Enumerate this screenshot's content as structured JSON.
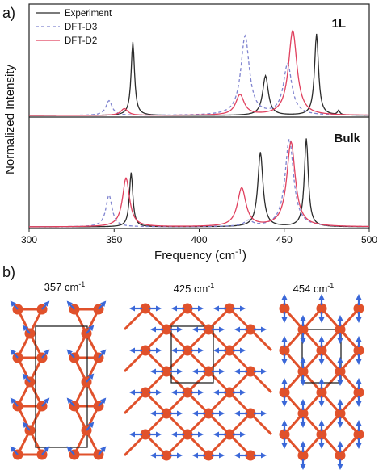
{
  "chart_data": [
    {
      "panel_label": "a)",
      "type": "line",
      "xlabel": "Frequency (cm",
      "xlabel_sup": "-1",
      "xlabel_close": ")",
      "ylabel": "Normalized Intensity",
      "xlim": [
        300,
        500
      ],
      "x_ticks": [
        "300",
        "350",
        "400",
        "450",
        "500"
      ],
      "legend_placement": "top-left",
      "colors": {
        "Experiment": "#2b2b2b",
        "DFT-D3": "#7f83cf",
        "DFT-D2": "#e0405e"
      },
      "subplots": [
        {
          "label": "1L",
          "series": [
            {
              "name": "Experiment",
              "style": "solid",
              "peaks": [
                [
                  361,
                  0.65,
                  1.2
                ],
                [
                  439,
                  0.35,
                  2.0
                ],
                [
                  469,
                  0.72,
                  1.4
                ],
                [
                  482,
                  0.04,
                  0.8
                ]
              ]
            },
            {
              "name": "DFT-D3",
              "style": "dashed",
              "peaks": [
                [
                  347,
                  0.13,
                  2.2
                ],
                [
                  427,
                  0.7,
                  3.0
                ],
                [
                  452,
                  0.45,
                  3.0
                ]
              ]
            },
            {
              "name": "DFT-D2",
              "style": "solid",
              "peaks": [
                [
                  356,
                  0.06,
                  2.5
                ],
                [
                  424,
                  0.18,
                  3.0
                ],
                [
                  455,
                  0.75,
                  3.0
                ]
              ]
            }
          ]
        },
        {
          "label": "Bulk",
          "series": [
            {
              "name": "Experiment",
              "style": "solid",
              "peaks": [
                [
                  360,
                  0.48,
                  1.2
                ],
                [
                  436,
                  0.66,
                  1.8
                ],
                [
                  463,
                  0.78,
                  1.4
                ]
              ]
            },
            {
              "name": "DFT-D3",
              "style": "dashed",
              "peaks": [
                [
                  347,
                  0.28,
                  2.2
                ],
                [
                  429,
                  0.05,
                  3.0
                ],
                [
                  453,
                  0.78,
                  3.0
                ]
              ]
            },
            {
              "name": "DFT-D2",
              "style": "solid",
              "peaks": [
                [
                  357,
                  0.43,
                  2.5
                ],
                [
                  425,
                  0.34,
                  3.0
                ],
                [
                  454,
                  0.75,
                  3.0
                ]
              ]
            }
          ]
        }
      ]
    }
  ],
  "panel_b": {
    "label": "b)",
    "modes": [
      {
        "value": "357 cm",
        "sup": "-1"
      },
      {
        "value": "425 cm",
        "sup": "-1"
      },
      {
        "value": "454 cm",
        "sup": "-1"
      }
    ],
    "colors": {
      "atom": "#e0512b",
      "bond": "#e0512b",
      "arrow": "#3a67d8",
      "cell": "#222222"
    }
  }
}
